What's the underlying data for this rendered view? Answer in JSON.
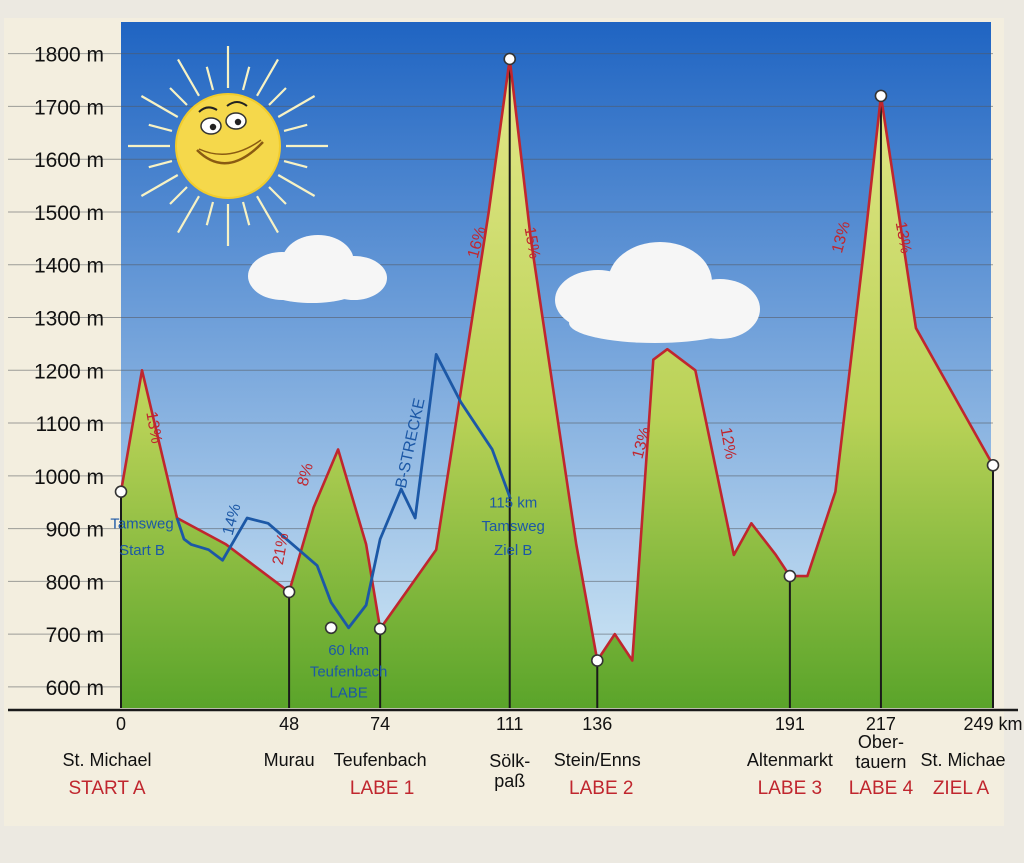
{
  "chart_data": {
    "type": "area",
    "title": "",
    "xlabel": "",
    "ylabel": "",
    "x_unit": "km",
    "xlim": [
      0,
      249
    ],
    "ylim": [
      560,
      1860
    ],
    "y_ticks": [
      600,
      700,
      800,
      900,
      1000,
      1100,
      1200,
      1300,
      1400,
      1500,
      1600,
      1700,
      1800
    ],
    "y_tick_suffix": " m",
    "x_ticks": [
      {
        "km": 0,
        "label": "0"
      },
      {
        "km": 48,
        "label": "48"
      },
      {
        "km": 74,
        "label": "74"
      },
      {
        "km": 111,
        "label": "111"
      },
      {
        "km": 136,
        "label": "136"
      },
      {
        "km": 191,
        "label": "191"
      },
      {
        "km": 217,
        "label": "217"
      },
      {
        "km": 249,
        "label": "249 km"
      }
    ],
    "grid": true,
    "colors": {
      "sky_top": "#1f64c2",
      "sky_bottom": "#d6ecf7",
      "hill_top": "#e6e88a",
      "hill_bottom": "#5aa42a",
      "profile_line": "#c0262e",
      "route_b_line": "#1c58a6",
      "stage_label": "#c0262e",
      "sun": "#f5d84b"
    },
    "series": [
      {
        "name": "",
        "x": [
          0,
          6,
          16,
          30,
          48,
          55,
          62,
          70,
          74,
          90,
          105,
          111,
          117,
          130,
          136,
          141,
          146,
          152,
          156,
          164,
          175,
          180,
          187,
          191,
          196,
          204,
          212,
          217,
          227,
          249
        ],
        "y": [
          970,
          1200,
          920,
          870,
          780,
          940,
          1050,
          870,
          710,
          860,
          1500,
          1790,
          1450,
          870,
          650,
          700,
          650,
          1220,
          1240,
          1200,
          850,
          910,
          850,
          810,
          810,
          970,
          1420,
          1720,
          1280,
          1020
        ]
      },
      {
        "name": "B-Strecke",
        "x": [
          16,
          18,
          20,
          25,
          29,
          36,
          42,
          49,
          56,
          60,
          65,
          70,
          74,
          80,
          84,
          90,
          97,
          106,
          111
        ],
        "y": [
          920,
          880,
          870,
          860,
          840,
          920,
          910,
          870,
          830,
          760,
          712,
          755,
          880,
          975,
          920,
          1230,
          1140,
          1050,
          960
        ]
      }
    ],
    "markers": [
      {
        "km": 0,
        "m": 970
      },
      {
        "km": 48,
        "m": 780
      },
      {
        "km": 74,
        "m": 710
      },
      {
        "km": 111,
        "m": 1790
      },
      {
        "km": 136,
        "m": 650
      },
      {
        "km": 191,
        "m": 810
      },
      {
        "km": 217,
        "m": 1720
      },
      {
        "km": 249,
        "m": 1020
      }
    ],
    "route_b_markers": [
      {
        "km": 60,
        "m": 712
      }
    ],
    "place_labels": [
      {
        "km": 0,
        "name": "St. Michael",
        "stage": "START A"
      },
      {
        "km": 48,
        "name": "Murau",
        "stage": ""
      },
      {
        "km": 74,
        "name": "Teufenbach",
        "stage": "LABE 1"
      },
      {
        "km": 111,
        "name": "Sölk-",
        "name2": "paß",
        "stage": ""
      },
      {
        "km": 136,
        "name": "Stein/Enns",
        "stage": "LABE 2"
      },
      {
        "km": 191,
        "name": "Altenmarkt",
        "stage": "LABE 3"
      },
      {
        "km": 217,
        "name": "Ober-",
        "name2": "tauern",
        "stage": "LABE 4"
      },
      {
        "km": 249,
        "name": "St. Michae",
        "stage": "ZIEL A"
      }
    ],
    "annotations": [
      {
        "text": "13%",
        "km": 8,
        "m": 1090,
        "color": "route_a",
        "rotate": 80
      },
      {
        "text": "8%",
        "km": 54,
        "m": 1000,
        "color": "route_a",
        "rotate": -75
      },
      {
        "text": "21%",
        "km": 47,
        "m": 860,
        "color": "route_a",
        "rotate": -80
      },
      {
        "text": "14%",
        "km": 33,
        "m": 915,
        "color": "route_b",
        "rotate": -75
      },
      {
        "text": "16%",
        "km": 103,
        "m": 1440,
        "color": "route_a",
        "rotate": -75
      },
      {
        "text": "15%",
        "km": 116,
        "m": 1440,
        "color": "route_a",
        "rotate": 80
      },
      {
        "text": "13%",
        "km": 150,
        "m": 1060,
        "color": "route_a",
        "rotate": -75
      },
      {
        "text": "12%",
        "km": 172,
        "m": 1060,
        "color": "route_a",
        "rotate": 80
      },
      {
        "text": "13%",
        "km": 207,
        "m": 1450,
        "color": "route_a",
        "rotate": -75
      },
      {
        "text": "13%",
        "km": 222,
        "m": 1450,
        "color": "route_a",
        "rotate": 80
      },
      {
        "text": "B-STRECKE",
        "km": 84,
        "m": 1060,
        "color": "route_b",
        "rotate": -78
      },
      {
        "text": "Tamsweg",
        "km": 6,
        "m": 900,
        "color": "route_b",
        "rotate": 0
      },
      {
        "text": "Start B",
        "km": 6,
        "m": 850,
        "color": "route_b",
        "rotate": 0
      },
      {
        "text": "60 km",
        "km": 65,
        "m": 660,
        "color": "route_b",
        "rotate": 0
      },
      {
        "text": "Teufenbach",
        "km": 65,
        "m": 620,
        "color": "route_b",
        "rotate": 0
      },
      {
        "text": "LABE",
        "km": 65,
        "m": 580,
        "color": "route_b",
        "rotate": 0
      },
      {
        "text": "115 km",
        "km": 112,
        "m": 940,
        "color": "route_b",
        "rotate": 0
      },
      {
        "text": "Tamsweg",
        "km": 112,
        "m": 895,
        "color": "route_b",
        "rotate": 0
      },
      {
        "text": "Ziel B",
        "km": 112,
        "m": 850,
        "color": "route_b",
        "rotate": 0
      }
    ]
  }
}
